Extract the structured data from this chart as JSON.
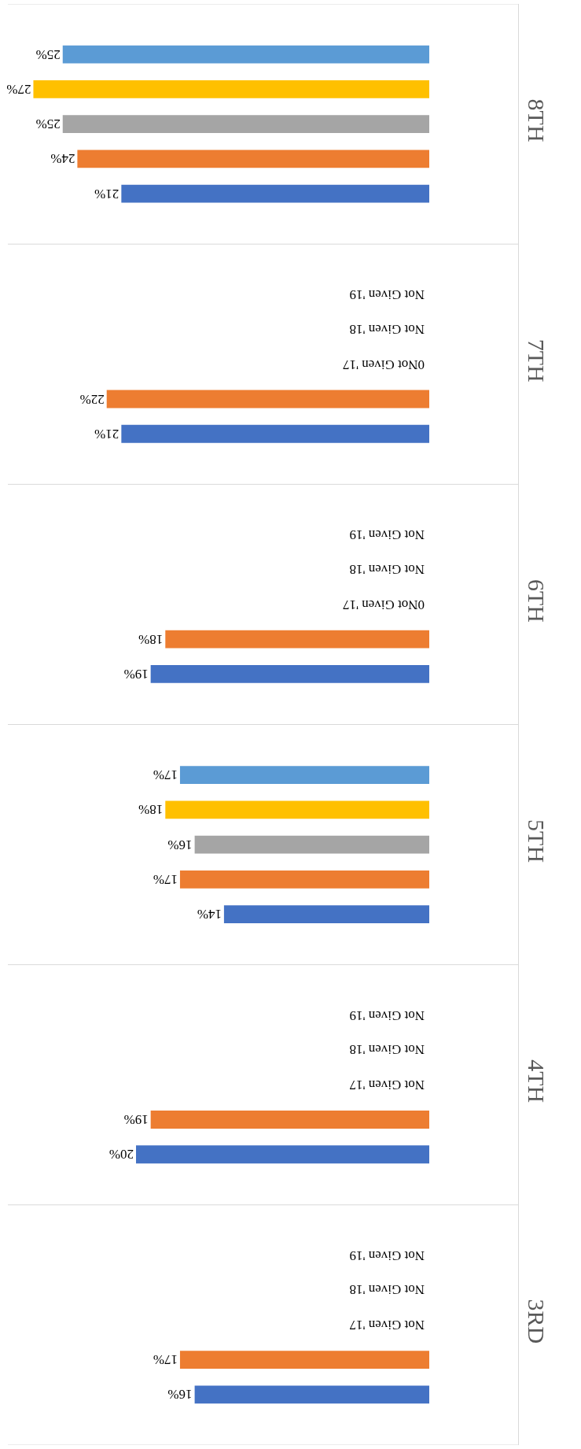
{
  "chart_data": {
    "type": "bar",
    "orientation": "horizontal",
    "categories": [
      "8TH",
      "7TH",
      "6TH",
      "5TH",
      "4TH",
      "3RD"
    ],
    "grid": true,
    "series": [
      {
        "color": "#4472c4",
        "values": [
          21,
          21,
          19,
          14,
          20,
          16
        ],
        "value_labels": [
          "21%",
          "21%",
          "19%",
          "14%",
          "20%",
          "16%"
        ]
      },
      {
        "color": "#ed7d31",
        "values": [
          24,
          22,
          18,
          17,
          19,
          17
        ],
        "value_labels": [
          "24%",
          "22%",
          "18%",
          "17%",
          "19%",
          "17%"
        ]
      },
      {
        "color": "#a5a5a5",
        "values": [
          25,
          null,
          null,
          16,
          null,
          null
        ],
        "value_labels": [
          "25%",
          "0Not Given '17",
          "0Not Given '17",
          "16%",
          "Not Given '17",
          "Not Given '17"
        ]
      },
      {
        "color": "#ffc000",
        "values": [
          27,
          null,
          null,
          18,
          null,
          null
        ],
        "value_labels": [
          "27%",
          "Not Given '18",
          "Not Given '18",
          "18%",
          "Not Given '18",
          "Not Given '18"
        ]
      },
      {
        "color": "#5b9bd5",
        "values": [
          25,
          null,
          null,
          17,
          null,
          null
        ],
        "value_labels": [
          "25%",
          "Not Given '19",
          "Not Given '19",
          "17%",
          "Not Given '19",
          "Not Given '19"
        ]
      }
    ]
  }
}
